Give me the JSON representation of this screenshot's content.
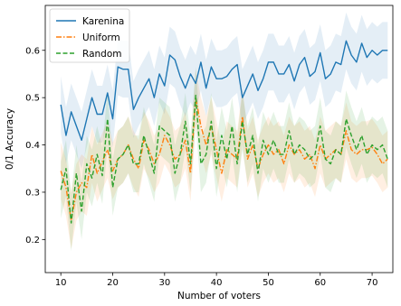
{
  "chart_data": {
    "type": "line",
    "xlabel": "Number of voters",
    "ylabel": "0/1 Accuracy",
    "xlim": [
      7,
      74
    ],
    "ylim": [
      0.13,
      0.695
    ],
    "xticks": [
      10,
      20,
      30,
      40,
      50,
      60,
      70
    ],
    "yticks": [
      0.2,
      0.3,
      0.4,
      0.5,
      0.6
    ],
    "legend_position": "top-left",
    "grid": false,
    "x": [
      10,
      11,
      12,
      13,
      14,
      15,
      16,
      17,
      18,
      19,
      20,
      21,
      22,
      23,
      24,
      25,
      26,
      27,
      28,
      29,
      30,
      31,
      32,
      33,
      34,
      35,
      36,
      37,
      38,
      39,
      40,
      41,
      42,
      43,
      44,
      45,
      46,
      47,
      48,
      49,
      50,
      51,
      52,
      53,
      54,
      55,
      56,
      57,
      58,
      59,
      60,
      61,
      62,
      63,
      64,
      65,
      66,
      67,
      68,
      69,
      70,
      71,
      72,
      73
    ],
    "series": [
      {
        "name": "Karenina",
        "color": "#1f77b4",
        "style": "solid",
        "band_width": 0.06,
        "values": [
          0.485,
          0.42,
          0.47,
          0.44,
          0.41,
          0.455,
          0.5,
          0.465,
          0.465,
          0.51,
          0.455,
          0.565,
          0.56,
          0.56,
          0.475,
          0.5,
          0.52,
          0.54,
          0.5,
          0.55,
          0.525,
          0.59,
          0.58,
          0.545,
          0.52,
          0.55,
          0.53,
          0.575,
          0.52,
          0.565,
          0.54,
          0.54,
          0.545,
          0.56,
          0.57,
          0.5,
          0.525,
          0.55,
          0.515,
          0.54,
          0.575,
          0.575,
          0.55,
          0.55,
          0.57,
          0.535,
          0.57,
          0.585,
          0.545,
          0.555,
          0.595,
          0.54,
          0.55,
          0.575,
          0.57,
          0.62,
          0.59,
          0.575,
          0.615,
          0.585,
          0.6,
          0.59,
          0.6,
          0.6
        ]
      },
      {
        "name": "Uniform",
        "color": "#ff7f0e",
        "style": "dashdot",
        "band_width": 0.06,
        "values": [
          0.345,
          0.31,
          0.24,
          0.3,
          0.32,
          0.31,
          0.38,
          0.34,
          0.365,
          0.39,
          0.345,
          0.37,
          0.38,
          0.4,
          0.37,
          0.35,
          0.41,
          0.39,
          0.36,
          0.38,
          0.42,
          0.4,
          0.37,
          0.38,
          0.41,
          0.34,
          0.5,
          0.44,
          0.4,
          0.44,
          0.39,
          0.34,
          0.39,
          0.38,
          0.37,
          0.46,
          0.37,
          0.4,
          0.35,
          0.38,
          0.4,
          0.38,
          0.39,
          0.36,
          0.4,
          0.38,
          0.39,
          0.37,
          0.38,
          0.35,
          0.4,
          0.37,
          0.38,
          0.39,
          0.38,
          0.43,
          0.39,
          0.38,
          0.39,
          0.39,
          0.395,
          0.38,
          0.36,
          0.37
        ]
      },
      {
        "name": "Random",
        "color": "#2ca02c",
        "style": "dashed",
        "band_width": 0.06,
        "values": [
          0.305,
          0.35,
          0.235,
          0.34,
          0.26,
          0.36,
          0.33,
          0.38,
          0.335,
          0.455,
          0.31,
          0.37,
          0.38,
          0.4,
          0.36,
          0.36,
          0.42,
          0.38,
          0.34,
          0.44,
          0.43,
          0.42,
          0.34,
          0.38,
          0.45,
          0.36,
          0.505,
          0.36,
          0.38,
          0.45,
          0.35,
          0.42,
          0.37,
          0.44,
          0.36,
          0.45,
          0.38,
          0.42,
          0.34,
          0.41,
          0.38,
          0.41,
          0.38,
          0.38,
          0.43,
          0.38,
          0.4,
          0.39,
          0.37,
          0.38,
          0.44,
          0.37,
          0.36,
          0.39,
          0.38,
          0.455,
          0.42,
          0.39,
          0.42,
          0.38,
          0.4,
          0.39,
          0.4,
          0.37
        ]
      }
    ]
  }
}
